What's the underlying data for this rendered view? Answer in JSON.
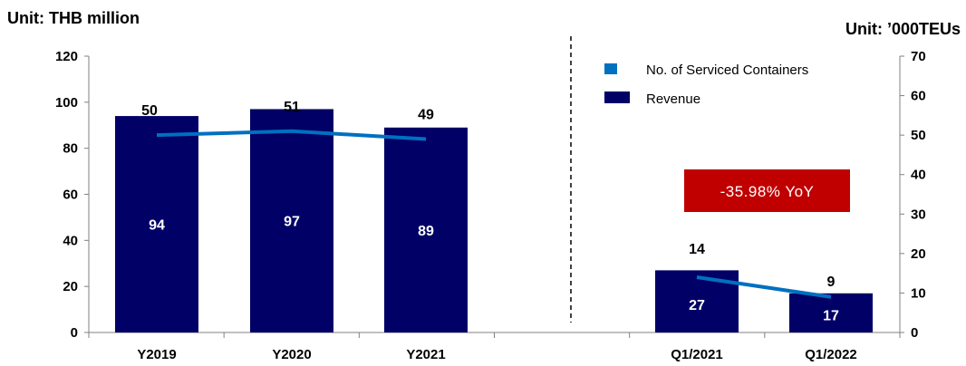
{
  "chart_data": {
    "type": "bar",
    "left_unit": "Unit: THB million",
    "right_unit": "Unit: ’000TEUs",
    "categories": [
      "Y2019",
      "Y2020",
      "Y2021",
      "",
      "Q1/2021",
      "Q1/2022"
    ],
    "y_left": {
      "min": 0,
      "max": 120,
      "ticks": [
        0,
        20,
        40,
        60,
        80,
        100,
        120
      ]
    },
    "y_right": {
      "min": 0,
      "max": 70,
      "ticks": [
        0,
        10,
        20,
        30,
        40,
        50,
        60,
        70
      ]
    },
    "series": [
      {
        "name": "Revenue",
        "type": "bar",
        "axis": "left",
        "values": [
          94,
          97,
          89,
          null,
          27,
          17
        ],
        "labels": [
          "94",
          "97",
          "89",
          "",
          "27",
          "17"
        ],
        "color": "#000066"
      },
      {
        "name": "No. of Serviced Containers",
        "type": "line",
        "axis": "right",
        "values": [
          50,
          51,
          49,
          null,
          14,
          9
        ],
        "labels": [
          "50",
          "51",
          "49",
          "",
          "14",
          "9"
        ],
        "color": "#0070C0"
      }
    ],
    "divider": "dashed vertical line between annual and quarterly groups",
    "legend": {
      "position": "top-right",
      "entries": [
        {
          "label": "No. of Serviced Containers",
          "color": "#0070C0"
        },
        {
          "label": "Revenue",
          "color": "#000066"
        }
      ]
    },
    "annotations": [
      {
        "text": "-35.98% YoY",
        "background": "#C00000"
      }
    ],
    "grid": false
  }
}
